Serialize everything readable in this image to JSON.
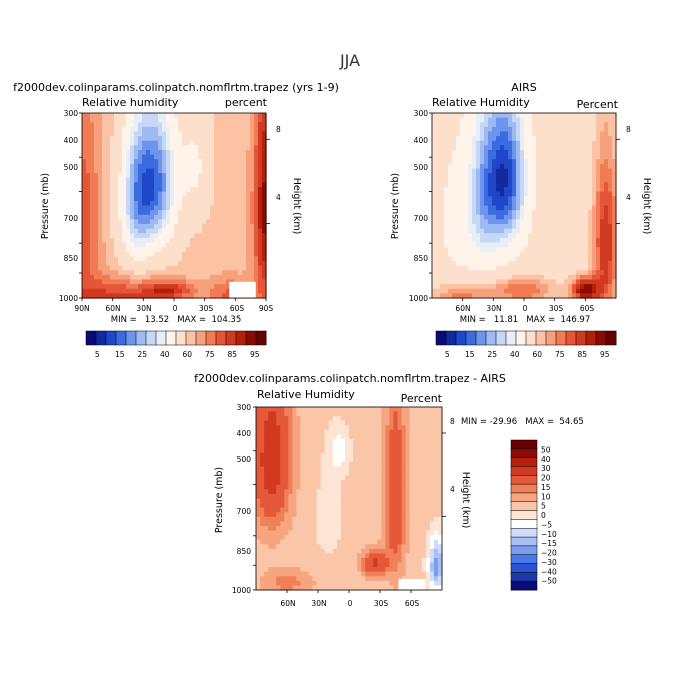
{
  "figure": {
    "title": "JJA",
    "field": "Relative humidity",
    "units": "percent"
  },
  "palettes": {
    "abs": [
      "#0a0a78",
      "#102aa0",
      "#1f47c8",
      "#3a6be0",
      "#6f94ec",
      "#9dbbf2",
      "#c6d8f6",
      "#e6eef8",
      "#fff3ea",
      "#fde0cc",
      "#fbc2a4",
      "#f6a07c",
      "#f07b55",
      "#e5553a",
      "#cf3a20",
      "#b2200c",
      "#8c0a04",
      "#6b0000"
    ],
    "diff": [
      "#0a0a78",
      "#1a3aa8",
      "#2b55d0",
      "#4a78e8",
      "#7a9cf0",
      "#a8c0f4",
      "#d0dcf8",
      "#ffffff",
      "#fde4d4",
      "#fbc6a8",
      "#f7a480",
      "#f08058",
      "#e5593a",
      "#d23a20",
      "#b8200c",
      "#8c0a04",
      "#6b0000"
    ]
  },
  "chart_data": [
    {
      "type": "heatmap",
      "panel": "model",
      "title": "f2000dev.colinparams.colinpatch.nomflrtm.trapez (yrs 1-9)",
      "left_label": "Relative humidity",
      "right_label": "percent",
      "ylabel": "Pressure (mb)",
      "y2label": "Height (km)",
      "x_ticks": [
        "90N",
        "60N",
        "30N",
        "0",
        "30S",
        "60S",
        "90S"
      ],
      "y_ticks": [
        "300",
        "400",
        "500",
        "700",
        "850",
        "1000"
      ],
      "height_ticks": [
        "8",
        "4"
      ],
      "xlim": [
        90,
        -90
      ],
      "ylim": [
        1000,
        300
      ],
      "min": "13.52",
      "max": "104.35",
      "stats_text": "MIN =   13.52   MAX =  104.35",
      "features": [
        {
          "kind": "background",
          "value": 62
        },
        {
          "kind": "blob",
          "lat": 18,
          "p": 470,
          "sx": 22,
          "sy": 230,
          "amp": -42
        },
        {
          "kind": "blob",
          "lat": 38,
          "p": 540,
          "sx": 16,
          "sy": 260,
          "amp": -24
        },
        {
          "kind": "blob",
          "lat": -22,
          "p": 420,
          "sx": 14,
          "sy": 160,
          "amp": -12
        },
        {
          "kind": "blob",
          "lat": 5,
          "p": 950,
          "sx": 25,
          "sy": 60,
          "amp": 20
        },
        {
          "kind": "blob",
          "lat": -90,
          "p": 560,
          "sx": 12,
          "sy": 460,
          "amp": 30
        },
        {
          "kind": "blob",
          "lat": 88,
          "p": 600,
          "sx": 16,
          "sy": 420,
          "amp": 16
        },
        {
          "kind": "blob",
          "lat": 55,
          "p": 1000,
          "sx": 45,
          "sy": 130,
          "amp": 20
        },
        {
          "kind": "blob",
          "lat": -55,
          "p": 980,
          "sx": 22,
          "sy": 110,
          "amp": 14
        }
      ],
      "masked_region": {
        "lat_from": -54,
        "lat_to": -80,
        "p_from": 900,
        "p_to": 1000
      }
    },
    {
      "type": "heatmap",
      "panel": "obs",
      "title": "AIRS",
      "left_label": "Relative Humidity",
      "right_label": "Percent",
      "ylabel": "Pressure (mb)",
      "y2label": "Height (km)",
      "x_ticks": [
        "60N",
        "30N",
        "0",
        "30S",
        "60S"
      ],
      "y_ticks": [
        "300",
        "400",
        "500",
        "700",
        "850",
        "1000"
      ],
      "height_ticks": [
        "8",
        "4"
      ],
      "xlim": [
        90,
        -90
      ],
      "ylim": [
        1000,
        300
      ],
      "min": "11.81",
      "max": "146.97",
      "stats_text": "MIN =   11.81   MAX =  146.97",
      "features": [
        {
          "kind": "background",
          "value": 55
        },
        {
          "kind": "blob",
          "lat": 18,
          "p": 460,
          "sx": 20,
          "sy": 230,
          "amp": -43
        },
        {
          "kind": "blob",
          "lat": 40,
          "p": 520,
          "sx": 16,
          "sy": 280,
          "amp": -20
        },
        {
          "kind": "blob",
          "lat": 65,
          "p": 600,
          "sx": 20,
          "sy": 280,
          "amp": -8
        },
        {
          "kind": "blob",
          "lat": -80,
          "p": 700,
          "sx": 12,
          "sy": 360,
          "amp": 30
        },
        {
          "kind": "blob",
          "lat": -60,
          "p": 950,
          "sx": 14,
          "sy": 80,
          "amp": 38
        },
        {
          "kind": "blob",
          "lat": 0,
          "p": 950,
          "sx": 30,
          "sy": 80,
          "amp": 20
        },
        {
          "kind": "blob",
          "lat": 60,
          "p": 1000,
          "sx": 30,
          "sy": 100,
          "amp": 18
        }
      ],
      "masked_region": null
    },
    {
      "type": "heatmap",
      "panel": "difference",
      "title": "f2000dev.colinparams.colinpatch.nomflrtm.trapez - AIRS",
      "left_label": "Relative Humidity",
      "right_label": "Percent",
      "ylabel": "Pressure (mb)",
      "y2label": "Height (km)",
      "x_ticks": [
        "60N",
        "30N",
        "0",
        "30S",
        "60S"
      ],
      "y_ticks": [
        "300",
        "400",
        "500",
        "700",
        "850",
        "1000"
      ],
      "height_ticks": [
        "8",
        "4"
      ],
      "xlim": [
        90,
        -90
      ],
      "ylim": [
        1000,
        300
      ],
      "min": "-29.96",
      "max": "54.65",
      "stats_text": "MIN = -29.96   MAX =  54.65",
      "features": [
        {
          "kind": "background",
          "value": 7
        },
        {
          "kind": "blob",
          "lat": 75,
          "p": 420,
          "sx": 18,
          "sy": 220,
          "amp": 30
        },
        {
          "kind": "blob",
          "lat": -45,
          "p": 540,
          "sx": 10,
          "sy": 320,
          "amp": 22
        },
        {
          "kind": "blob",
          "lat": -25,
          "p": 840,
          "sx": 12,
          "sy": 70,
          "amp": 25
        },
        {
          "kind": "blob",
          "lat": 10,
          "p": 400,
          "sx": 10,
          "sy": 60,
          "amp": -10
        },
        {
          "kind": "blob",
          "lat": -85,
          "p": 850,
          "sx": 8,
          "sy": 150,
          "amp": -25
        },
        {
          "kind": "blob",
          "lat": 60,
          "p": 950,
          "sx": 25,
          "sy": 80,
          "amp": 10
        },
        {
          "kind": "blob",
          "lat": 20,
          "p": 620,
          "sx": 15,
          "sy": 200,
          "amp": -4
        }
      ],
      "masked_region": {
        "lat_from": -48,
        "lat_to": -74,
        "p_from": 930,
        "p_to": 1000
      }
    }
  ],
  "colorbars": [
    {
      "orientation": "horizontal",
      "levels": [
        5,
        10,
        15,
        20,
        25,
        30,
        35,
        40,
        50,
        60,
        65,
        70,
        75,
        80,
        85,
        90,
        95
      ],
      "labels": [
        "5",
        "15",
        "25",
        "40",
        "60",
        "75",
        "85",
        "95"
      ]
    },
    {
      "orientation": "vertical",
      "levels": [
        -50,
        -40,
        -30,
        -20,
        -15,
        -10,
        -5,
        0,
        5,
        10,
        15,
        20,
        30,
        40,
        50
      ],
      "labels": [
        "50",
        "40",
        "30",
        "20",
        "15",
        "10",
        "5",
        "0",
        "−5",
        "−10",
        "−15",
        "−20",
        "−30",
        "−40",
        "−50"
      ]
    }
  ]
}
